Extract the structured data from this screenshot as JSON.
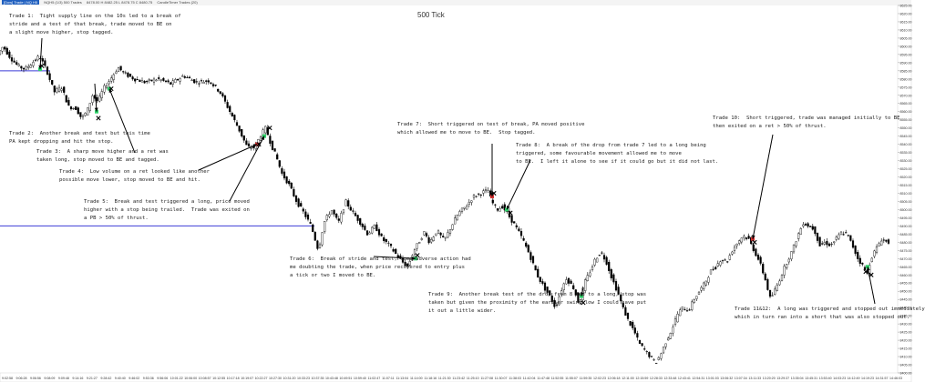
{
  "window": {
    "instrument": "[Dow] Trade | NQ H5",
    "bar_type": "500 Tick",
    "toolbar_text": "NQH5 (1/3) 500 Trades",
    "ohlc_text": "8478.00 H 8482.25 L 8478.75 C 8480.75",
    "indicators": "CandleTimer  Trades (20)"
  },
  "annotations": [
    {
      "id": "trade-1",
      "text": "Trade 1:  Tight supply line on the 10s led to a break of\nstride and a test of that break, trade moved to BE on\na slight move higher, stop tagged."
    },
    {
      "id": "trade-2",
      "text": "Trade 2:  Another break and test but this time\nPA kept dropping and hit the stop."
    },
    {
      "id": "trade-3",
      "text": "Trade 3:  A sharp move higher and a ret was\ntaken long, stop moved to BE and tagged."
    },
    {
      "id": "trade-4",
      "text": "Trade 4:  Low volume on a ret looked like another\npossible move lower, stop moved to BE and hit."
    },
    {
      "id": "trade-5",
      "text": "Trade 5:  Break and test triggered a long, price moved\nhigher with a stop being trailed.  Trade was exited on\na PB > 50% of thrust."
    },
    {
      "id": "trade-6",
      "text": "Trade 6:  Break of stride and test, some adverse action had\nme doubting the trade, when price recovered to entry plus\na tick or two I moved to BE."
    },
    {
      "id": "trade-7",
      "text": "Trade 7:  Short triggered on test of break, PA moved positive\nwhich allowed me to move to BE.  Stop tagged."
    },
    {
      "id": "trade-8",
      "text": "Trade 8:  A break of the drop from trade 7 led to a long being\ntriggered, some favourable movement allowed me to move\nto BE.  I left it alone to see if it could go but it did not last."
    },
    {
      "id": "trade-9",
      "text": "Trade 9:  Another break test of the drop from 8 led to a long, stop was\ntaken but given the proximity of the earlier swing low I could have put\nit out a little wider."
    },
    {
      "id": "trade-10",
      "text": "Trade 10:  Short triggered, trade was managed initially to BE\nthen exited on a ret > 50% of thrust."
    },
    {
      "id": "trade-11-12",
      "text": "Trade 11&12:  A long was triggered and stopped out immediately\nwhich in turn ran into a short that was also stopped out."
    }
  ],
  "chart_data": {
    "type": "line",
    "title": "500 Tick",
    "xlabel": "",
    "ylabel": "",
    "ylim": [
      8400,
      8625
    ],
    "y_ticks": [
      8625,
      8620,
      8615,
      8610,
      8605,
      8600,
      8595,
      8590,
      8585,
      8580,
      8575,
      8570,
      8565,
      8560,
      8555,
      8550,
      8545,
      8540,
      8535,
      8530,
      8525,
      8520,
      8515,
      8510,
      8505,
      8500,
      8495,
      8490,
      8485,
      8480,
      8475,
      8470,
      8465,
      8460,
      8455,
      8450,
      8445,
      8440,
      8435,
      8430,
      8425,
      8420,
      8415,
      8410,
      8405,
      8400
    ],
    "x_ticks": [
      "9:02:58",
      "9:06:28",
      "9:06:56",
      "9:08:09",
      "9:09:48",
      "9:14:16",
      "9:21:27",
      "9:28:42",
      "9:40:40",
      "9:46:02",
      "9:53:36",
      "9:56:06",
      "10:01:22",
      "10:06:00",
      "10:08:57",
      "10:12:55",
      "10:17:18",
      "10:19:07",
      "10:22:27",
      "10:27:30",
      "10:31:20",
      "10:33:23",
      "10:37:35",
      "10:43:48",
      "10:49:51",
      "10:59:40",
      "11:02:47",
      "11:07:11",
      "11:13:04",
      "11:14:00",
      "11:18:16",
      "11:21:30",
      "11:23:42",
      "11:25:10",
      "11:27:08",
      "11:30:07",
      "11:38:03",
      "11:42:04",
      "11:47:48",
      "11:52:55",
      "11:55:07",
      "11:59:35",
      "12:02:23",
      "12:06:18",
      "12:11:00",
      "12:15:59",
      "12:28:33",
      "12:33:48",
      "12:43:41",
      "12:54:31",
      "13:01:03",
      "13:06:32",
      "13:07:34",
      "13:11:33",
      "13:20:20",
      "13:29:37",
      "13:35:04",
      "13:45:31",
      "13:53:40",
      "14:03:23",
      "14:12:49",
      "14:19:23",
      "14:31:57",
      "14:46:03"
    ],
    "price_path": [
      [
        0,
        8595
      ],
      [
        6,
        8600
      ],
      [
        14,
        8593
      ],
      [
        22,
        8588
      ],
      [
        30,
        8586
      ],
      [
        38,
        8590
      ],
      [
        46,
        8594
      ],
      [
        54,
        8585
      ],
      [
        62,
        8572
      ],
      [
        70,
        8575
      ],
      [
        78,
        8563
      ],
      [
        86,
        8562
      ],
      [
        92,
        8556
      ],
      [
        98,
        8560
      ],
      [
        104,
        8570
      ],
      [
        110,
        8566
      ],
      [
        116,
        8574
      ],
      [
        124,
        8580
      ],
      [
        132,
        8587
      ],
      [
        140,
        8583
      ],
      [
        150,
        8580
      ],
      [
        162,
        8578
      ],
      [
        176,
        8580
      ],
      [
        190,
        8577
      ],
      [
        204,
        8582
      ],
      [
        218,
        8578
      ],
      [
        232,
        8579
      ],
      [
        244,
        8572
      ],
      [
        254,
        8561
      ],
      [
        264,
        8550
      ],
      [
        274,
        8538
      ],
      [
        282,
        8538
      ],
      [
        288,
        8545
      ],
      [
        294,
        8550
      ],
      [
        300,
        8540
      ],
      [
        306,
        8532
      ],
      [
        312,
        8522
      ],
      [
        320,
        8515
      ],
      [
        328,
        8505
      ],
      [
        336,
        8498
      ],
      [
        344,
        8490
      ],
      [
        352,
        8475
      ],
      [
        358,
        8492
      ],
      [
        366,
        8500
      ],
      [
        374,
        8492
      ],
      [
        382,
        8505
      ],
      [
        390,
        8498
      ],
      [
        398,
        8492
      ],
      [
        406,
        8485
      ],
      [
        414,
        8490
      ],
      [
        422,
        8482
      ],
      [
        430,
        8478
      ],
      [
        438,
        8472
      ],
      [
        444,
        8468
      ],
      [
        450,
        8465
      ],
      [
        456,
        8474
      ],
      [
        462,
        8480
      ],
      [
        468,
        8486
      ],
      [
        474,
        8480
      ],
      [
        482,
        8487
      ],
      [
        490,
        8481
      ],
      [
        498,
        8490
      ],
      [
        506,
        8498
      ],
      [
        514,
        8502
      ],
      [
        522,
        8508
      ],
      [
        530,
        8510
      ],
      [
        538,
        8512
      ],
      [
        542,
        8505
      ],
      [
        548,
        8500
      ],
      [
        554,
        8502
      ],
      [
        560,
        8497
      ],
      [
        568,
        8490
      ],
      [
        576,
        8482
      ],
      [
        584,
        8472
      ],
      [
        592,
        8460
      ],
      [
        600,
        8452
      ],
      [
        606,
        8447
      ],
      [
        612,
        8440
      ],
      [
        618,
        8450
      ],
      [
        624,
        8458
      ],
      [
        632,
        8452
      ],
      [
        638,
        8442
      ],
      [
        644,
        8455
      ],
      [
        650,
        8462
      ],
      [
        656,
        8470
      ],
      [
        662,
        8474
      ],
      [
        668,
        8468
      ],
      [
        674,
        8458
      ],
      [
        680,
        8450
      ],
      [
        686,
        8440
      ],
      [
        692,
        8432
      ],
      [
        698,
        8426
      ],
      [
        704,
        8418
      ],
      [
        710,
        8414
      ],
      [
        716,
        8410
      ],
      [
        722,
        8406
      ],
      [
        728,
        8412
      ],
      [
        734,
        8420
      ],
      [
        740,
        8427
      ],
      [
        746,
        8436
      ],
      [
        752,
        8440
      ],
      [
        758,
        8438
      ],
      [
        764,
        8445
      ],
      [
        770,
        8450
      ],
      [
        776,
        8455
      ],
      [
        782,
        8462
      ],
      [
        788,
        8465
      ],
      [
        794,
        8470
      ],
      [
        800,
        8468
      ],
      [
        806,
        8475
      ],
      [
        812,
        8480
      ],
      [
        818,
        8484
      ],
      [
        824,
        8482
      ],
      [
        830,
        8475
      ],
      [
        836,
        8468
      ],
      [
        842,
        8458
      ],
      [
        848,
        8445
      ],
      [
        854,
        8452
      ],
      [
        860,
        8460
      ],
      [
        866,
        8468
      ],
      [
        872,
        8475
      ],
      [
        878,
        8484
      ],
      [
        884,
        8492
      ],
      [
        890,
        8490
      ],
      [
        896,
        8488
      ],
      [
        902,
        8478
      ],
      [
        908,
        8480
      ],
      [
        914,
        8478
      ],
      [
        920,
        8482
      ],
      [
        926,
        8486
      ],
      [
        932,
        8485
      ],
      [
        938,
        8478
      ],
      [
        944,
        8470
      ],
      [
        950,
        8465
      ],
      [
        954,
        8460
      ],
      [
        958,
        8470
      ],
      [
        964,
        8476
      ],
      [
        970,
        8482
      ],
      [
        976,
        8480
      ]
    ],
    "horizontal_lines": [
      {
        "y": 8585,
        "color": "#3b3bd6"
      },
      {
        "y": 8490,
        "color": "#3b3bd6"
      }
    ],
    "trade_markers": [
      {
        "x": 44,
        "y": 8586,
        "kind": "entry-long"
      },
      {
        "x": 46,
        "y": 8588,
        "kind": "exit"
      },
      {
        "x": 106,
        "y": 8560,
        "kind": "entry-long"
      },
      {
        "x": 108,
        "y": 8556,
        "kind": "exit"
      },
      {
        "x": 120,
        "y": 8574,
        "kind": "entry-long"
      },
      {
        "x": 122,
        "y": 8574,
        "kind": "exit"
      },
      {
        "x": 282,
        "y": 8540,
        "kind": "entry-short"
      },
      {
        "x": 284,
        "y": 8540,
        "kind": "exit"
      },
      {
        "x": 290,
        "y": 8545,
        "kind": "entry-long"
      },
      {
        "x": 296,
        "y": 8550,
        "kind": "exit"
      },
      {
        "x": 456,
        "y": 8470,
        "kind": "entry-long"
      },
      {
        "x": 458,
        "y": 8472,
        "kind": "exit"
      },
      {
        "x": 540,
        "y": 8508,
        "kind": "entry-short"
      },
      {
        "x": 542,
        "y": 8510,
        "kind": "exit"
      },
      {
        "x": 556,
        "y": 8500,
        "kind": "entry-long"
      },
      {
        "x": 560,
        "y": 8498,
        "kind": "exit"
      },
      {
        "x": 638,
        "y": 8447,
        "kind": "entry-long"
      },
      {
        "x": 640,
        "y": 8443,
        "kind": "exit"
      },
      {
        "x": 826,
        "y": 8482,
        "kind": "entry-short"
      },
      {
        "x": 828,
        "y": 8480,
        "kind": "exit"
      },
      {
        "x": 952,
        "y": 8465,
        "kind": "entry-long"
      },
      {
        "x": 950,
        "y": 8462,
        "kind": "exit"
      },
      {
        "x": 956,
        "y": 8460,
        "kind": "exit"
      }
    ],
    "colors": {
      "candle": "#000000",
      "support_line": "#3b3bd6",
      "long_marker": "#2fd36a",
      "short_marker": "#d32f2f",
      "arrow": "#000000"
    }
  }
}
